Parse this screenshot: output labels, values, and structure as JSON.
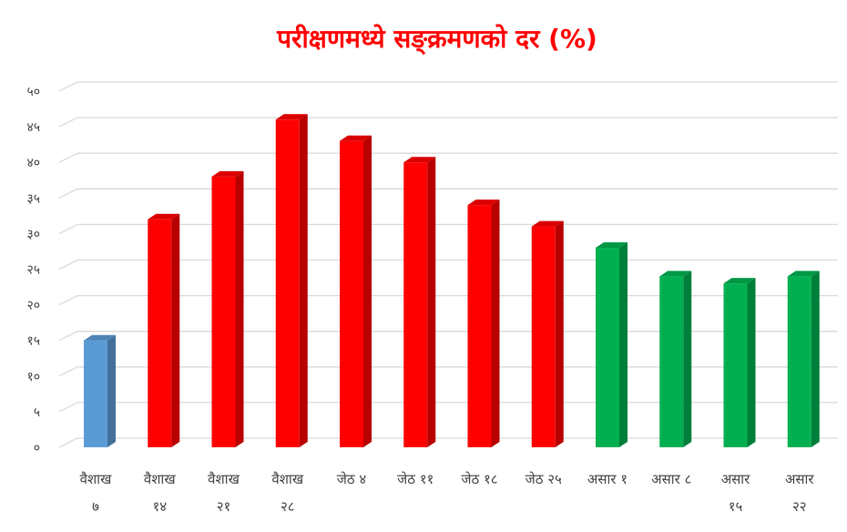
{
  "chart_data": {
    "type": "bar",
    "title": "परीक्षणमध्ये सङ्क्रमणको दर (%)",
    "xlabel": "",
    "ylabel": "",
    "ylim": [
      0,
      50
    ],
    "yticks": [
      {
        "value": 0,
        "label": "०"
      },
      {
        "value": 5,
        "label": "५"
      },
      {
        "value": 10,
        "label": "१०"
      },
      {
        "value": 15,
        "label": "१५"
      },
      {
        "value": 20,
        "label": "२०"
      },
      {
        "value": 25,
        "label": "२५"
      },
      {
        "value": 30,
        "label": "३०"
      },
      {
        "value": 35,
        "label": "३५"
      },
      {
        "value": 40,
        "label": "४०"
      },
      {
        "value": 45,
        "label": "४५"
      },
      {
        "value": 50,
        "label": "५०"
      }
    ],
    "grid": true,
    "categories": [
      {
        "label": [
          "वैशाख",
          "७"
        ],
        "value": 15,
        "color": "#5B9BD5"
      },
      {
        "label": [
          "वैशाख",
          "१४"
        ],
        "value": 32,
        "color": "#FF0000"
      },
      {
        "label": [
          "वैशाख",
          "२१"
        ],
        "value": 38,
        "color": "#FF0000"
      },
      {
        "label": [
          "वैशाख",
          "२८"
        ],
        "value": 46,
        "color": "#FF0000"
      },
      {
        "label": [
          "जेठ ४"
        ],
        "value": 43,
        "color": "#FF0000"
      },
      {
        "label": [
          "जेठ ११"
        ],
        "value": 40,
        "color": "#FF0000"
      },
      {
        "label": [
          "जेठ १८"
        ],
        "value": 34,
        "color": "#FF0000"
      },
      {
        "label": [
          "जेठ २५"
        ],
        "value": 31,
        "color": "#FF0000"
      },
      {
        "label": [
          "असार १"
        ],
        "value": 28,
        "color": "#00B050"
      },
      {
        "label": [
          "असार ८"
        ],
        "value": 24,
        "color": "#00B050"
      },
      {
        "label": [
          "असार",
          "१५"
        ],
        "value": 23,
        "color": "#00B050"
      },
      {
        "label": [
          "असार",
          "२२"
        ],
        "value": 24,
        "color": "#00B050"
      }
    ],
    "title_color": "#FF0000"
  }
}
